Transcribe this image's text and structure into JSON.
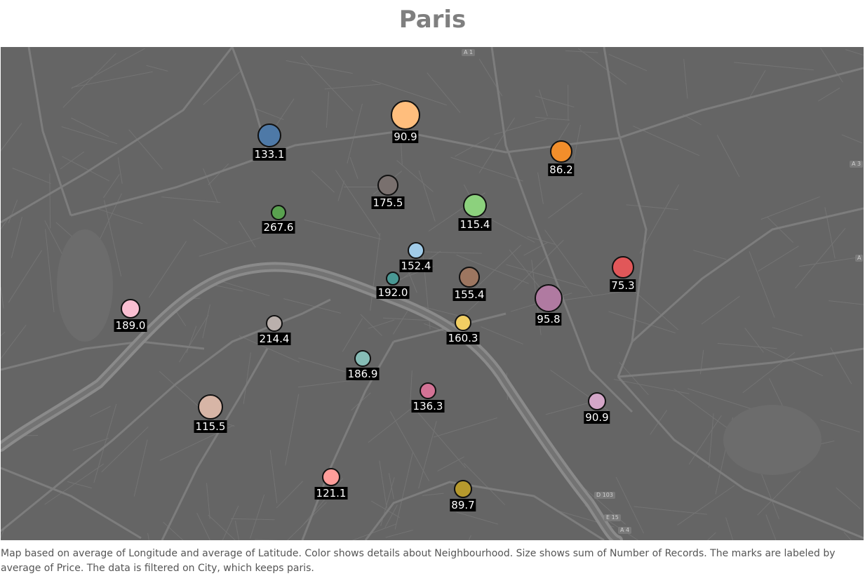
{
  "title": "Paris",
  "caption": "Map based on average of Longitude and average of Latitude.  Color shows details about Neighbourhood.  Size shows sum of Number of Records.  The marks are labeled by average of Price. The data is filtered on City, which keeps paris.",
  "road_labels": [
    "A 1",
    "A 3",
    "A",
    "D 103",
    "E 15",
    "A 4"
  ],
  "colors": {
    "map_background": "#656565",
    "roads": "#7d7d7d",
    "river": "#8a8a8a",
    "label_bg": "#000000"
  },
  "chart_data": {
    "type": "scatter",
    "marks": [
      {
        "label": "90.9",
        "price": 90.9,
        "color": "#ffbe7d"
      },
      {
        "label": "133.1",
        "price": 133.1,
        "color": "#4e79a7"
      },
      {
        "label": "86.2",
        "price": 86.2,
        "color": "#f28e2b"
      },
      {
        "label": "175.5",
        "price": 175.5,
        "color": "#79706e"
      },
      {
        "label": "115.4",
        "price": 115.4,
        "color": "#8cd17d"
      },
      {
        "label": "267.6",
        "price": 267.6,
        "color": "#59a14f"
      },
      {
        "label": "152.4",
        "price": 152.4,
        "color": "#a0cbe8"
      },
      {
        "label": "75.3",
        "price": 75.3,
        "color": "#e15759"
      },
      {
        "label": "192.0",
        "price": 192.0,
        "color": "#499894"
      },
      {
        "label": "155.4",
        "price": 155.4,
        "color": "#9d7660"
      },
      {
        "label": "95.8",
        "price": 95.8,
        "color": "#b07aa1"
      },
      {
        "label": "189.0",
        "price": 189.0,
        "color": "#fabfd2"
      },
      {
        "label": "214.4",
        "price": 214.4,
        "color": "#bab0ac"
      },
      {
        "label": "160.3",
        "price": 160.3,
        "color": "#f1ce63"
      },
      {
        "label": "186.9",
        "price": 186.9,
        "color": "#86bcb6"
      },
      {
        "label": "136.3",
        "price": 136.3,
        "color": "#d37295"
      },
      {
        "label": "90.9",
        "price": 90.9,
        "color": "#d4a6c8"
      },
      {
        "label": "115.5",
        "price": 115.5,
        "color": "#d7b5a6"
      },
      {
        "label": "121.1",
        "price": 121.1,
        "color": "#ff9d9a"
      },
      {
        "label": "89.7",
        "price": 89.7,
        "color": "#b6992d"
      }
    ]
  }
}
